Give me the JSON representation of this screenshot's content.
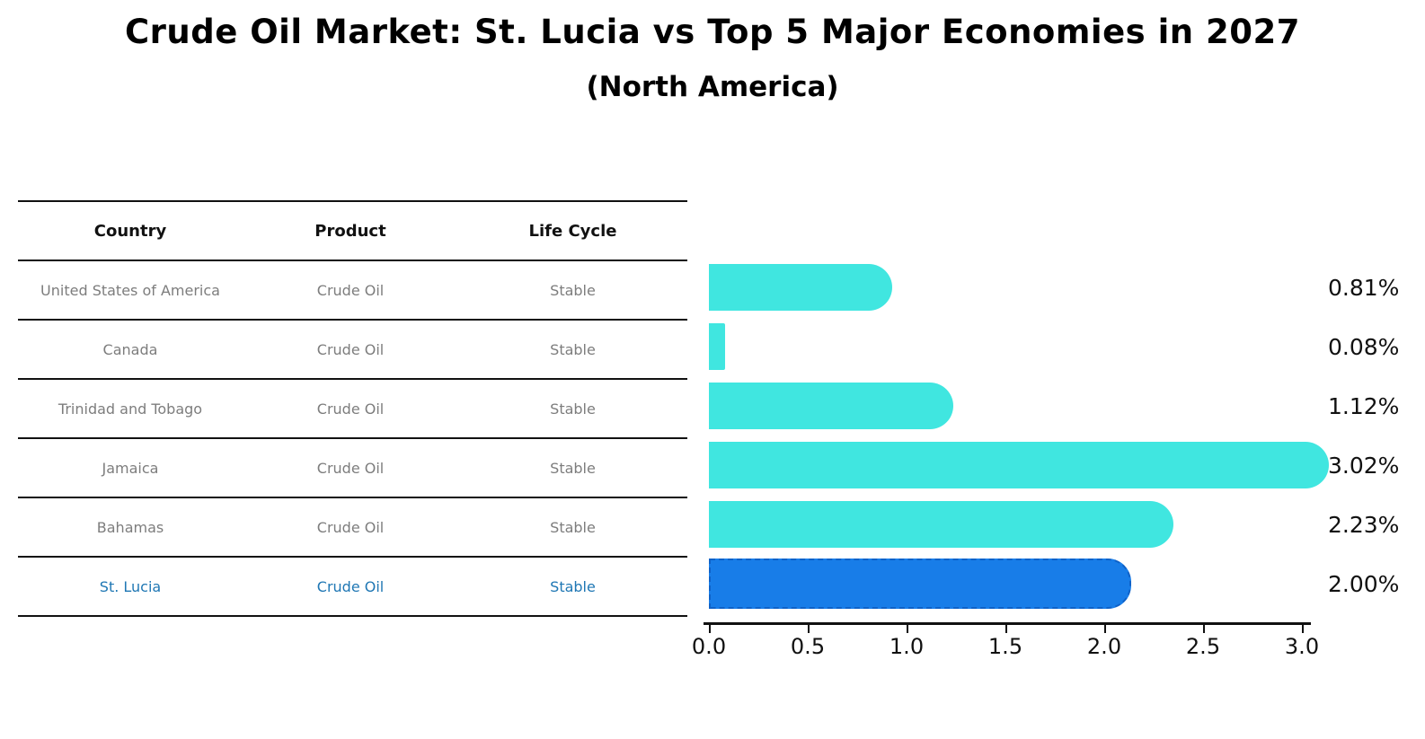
{
  "title": "Crude Oil Market: St. Lucia vs Top 5 Major Economies in 2027",
  "subtitle": "(North America)",
  "table": {
    "headers": [
      "Country",
      "Product",
      "Life Cycle"
    ],
    "rows": [
      {
        "country": "United States of America",
        "product": "Crude Oil",
        "life_cycle": "Stable",
        "highlight": false
      },
      {
        "country": "Canada",
        "product": "Crude Oil",
        "life_cycle": "Stable",
        "highlight": false
      },
      {
        "country": "Trinidad and Tobago",
        "product": "Crude Oil",
        "life_cycle": "Stable",
        "highlight": false
      },
      {
        "country": "Jamaica",
        "product": "Crude Oil",
        "life_cycle": "Stable",
        "highlight": false
      },
      {
        "country": "Bahamas",
        "product": "Crude Oil",
        "life_cycle": "Stable",
        "highlight": false
      },
      {
        "country": "St. Lucia",
        "product": "Crude Oil",
        "life_cycle": "Stable",
        "highlight": true
      }
    ]
  },
  "chart_data": {
    "type": "bar",
    "orientation": "horizontal",
    "title": "Crude Oil Market: St. Lucia vs Top 5 Major Economies in 2027",
    "subtitle": "(North America)",
    "categories": [
      "United States of America",
      "Canada",
      "Trinidad and Tobago",
      "Jamaica",
      "Bahamas",
      "St. Lucia"
    ],
    "values": [
      0.81,
      0.08,
      1.12,
      3.02,
      2.23,
      2.0
    ],
    "bar_labels": [
      "0.81%",
      "0.08%",
      "1.12%",
      "3.02%",
      "2.23%",
      "2.00%"
    ],
    "highlight_category": "St. Lucia",
    "xlabel": "",
    "ylabel": "",
    "xlim": [
      0.0,
      3.2
    ],
    "x_ticks": [
      0.0,
      0.5,
      1.0,
      1.5,
      2.0,
      2.5,
      3.0
    ],
    "x_tick_labels": [
      "0.0",
      "0.5",
      "1.0",
      "1.5",
      "2.0",
      "2.5",
      "3.0"
    ],
    "grid": false,
    "legend": null,
    "colors": {
      "bar": "#40e6e0",
      "highlight_bar": "#187de8",
      "highlight_border": "#0f62c8",
      "highlight_text": "#1f77b4",
      "table_text": "#7d7d7d",
      "axis": "#111111"
    }
  }
}
